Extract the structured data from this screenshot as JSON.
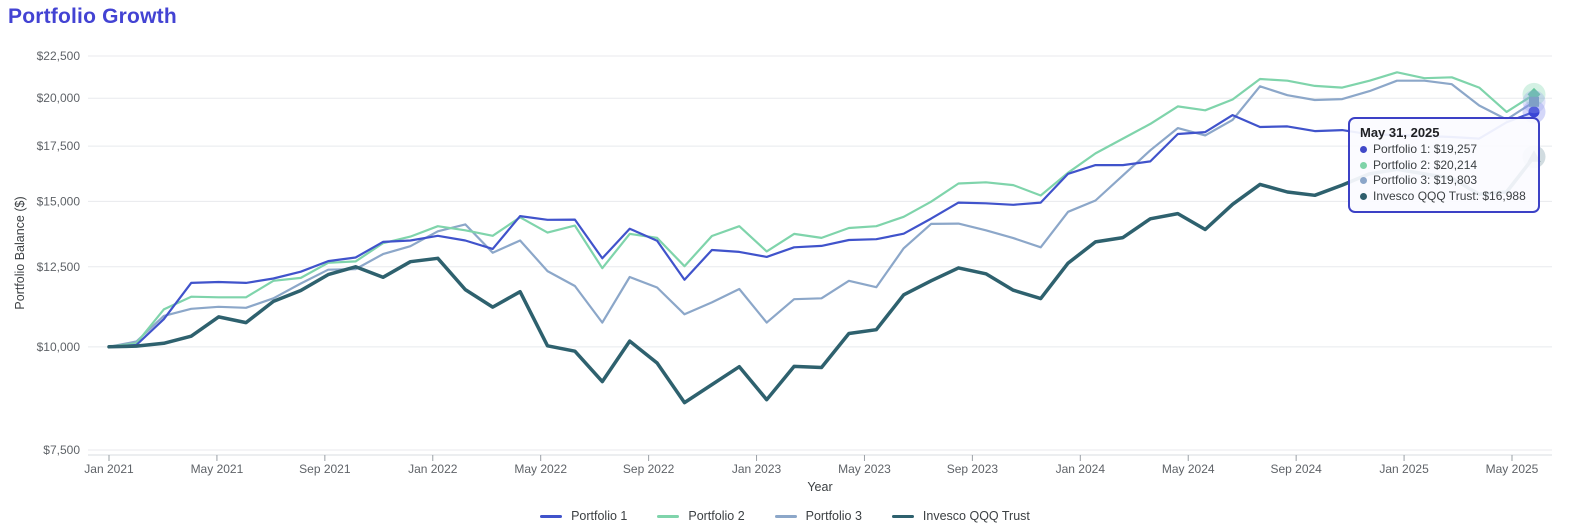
{
  "page": {
    "title": "Portfolio Growth",
    "title_color": "#4343d3"
  },
  "chart_data": {
    "type": "line",
    "title": "Portfolio Growth",
    "xlabel": "Year",
    "ylabel": "Portfolio Balance ($)",
    "y_scale": "log",
    "grid": true,
    "legend_position": "bottom",
    "ylim": [
      7500,
      22500
    ],
    "y_tick_values": [
      22500,
      20000,
      17500,
      15000,
      12500,
      10000,
      7500
    ],
    "y_tick_labels": [
      "$22,500",
      "$20,000",
      "$17,500",
      "$15,000",
      "$12,500",
      "$10,000",
      "$7,500"
    ],
    "x_tick_labels": [
      "Jan 2021",
      "May 2021",
      "Sep 2021",
      "Jan 2022",
      "May 2022",
      "Sep 2022",
      "Jan 2023",
      "May 2023",
      "Sep 2023",
      "Jan 2024",
      "May 2024",
      "Sep 2024",
      "Jan 2025",
      "May 2025"
    ],
    "months": [
      "Jan 2021",
      "Feb 2021",
      "Mar 2021",
      "Apr 2021",
      "May 2021",
      "Jun 2021",
      "Jul 2021",
      "Aug 2021",
      "Sep 2021",
      "Oct 2021",
      "Nov 2021",
      "Dec 2021",
      "Jan 2022",
      "Feb 2022",
      "Mar 2022",
      "Apr 2022",
      "May 2022",
      "Jun 2022",
      "Jul 2022",
      "Aug 2022",
      "Sep 2022",
      "Oct 2022",
      "Nov 2022",
      "Dec 2022",
      "Jan 2023",
      "Feb 2023",
      "Mar 2023",
      "Apr 2023",
      "May 2023",
      "Jun 2023",
      "Jul 2023",
      "Aug 2023",
      "Sep 2023",
      "Oct 2023",
      "Nov 2023",
      "Dec 2023",
      "Jan 2024",
      "Feb 2024",
      "Mar 2024",
      "Apr 2024",
      "May 2024",
      "Jun 2024",
      "Jul 2024",
      "Aug 2024",
      "Sep 2024",
      "Oct 2024",
      "Nov 2024",
      "Dec 2024",
      "Jan 2025",
      "Feb 2025",
      "Mar 2025",
      "Apr 2025",
      "May 2025"
    ],
    "series": [
      {
        "name": "Portfolio 1",
        "color": "#4053cb",
        "marker": "circle",
        "marker_color": "#3a46d6",
        "halo_color": "rgba(120,130,235,0.32)",
        "line_width": 2.2,
        "values": [
          10000,
          10050,
          10800,
          11950,
          11980,
          11950,
          12100,
          12330,
          12700,
          12830,
          13400,
          13450,
          13630,
          13450,
          13140,
          14400,
          14250,
          14260,
          12800,
          13900,
          13440,
          12060,
          13100,
          13030,
          12850,
          13200,
          13250,
          13470,
          13500,
          13710,
          14300,
          14950,
          14920,
          14860,
          14950,
          16200,
          16600,
          16600,
          16770,
          18100,
          18200,
          19080,
          18460,
          18490,
          18250,
          18300,
          18080,
          18050,
          18000,
          17950,
          17870,
          18700,
          19257
        ]
      },
      {
        "name": "Portfolio 2",
        "color": "#7fd4ab",
        "marker": "diamond",
        "marker_color": "#63c79c",
        "halo_color": "rgba(120,210,170,0.32)",
        "line_width": 2.2,
        "values": [
          10000,
          10100,
          11100,
          11500,
          11480,
          11480,
          12020,
          12120,
          12640,
          12690,
          13350,
          13600,
          14000,
          13840,
          13630,
          14350,
          13750,
          14020,
          12450,
          13700,
          13550,
          12520,
          13620,
          14000,
          13050,
          13700,
          13550,
          13930,
          14000,
          14370,
          14990,
          15770,
          15820,
          15700,
          15250,
          16250,
          17150,
          17870,
          18620,
          19550,
          19340,
          19930,
          21100,
          21000,
          20700,
          20600,
          21000,
          21500,
          21150,
          21200,
          20600,
          19250,
          20214
        ]
      },
      {
        "name": "Portfolio 3",
        "color": "#8ca7c9",
        "marker": "square",
        "marker_color": "#7fa0c6",
        "halo_color": "rgba(150,160,235,0.30)",
        "line_width": 2.2,
        "values": [
          10000,
          10150,
          10900,
          11120,
          11180,
          11150,
          11450,
          11930,
          12400,
          12420,
          12950,
          13240,
          13800,
          14070,
          13000,
          13450,
          12350,
          11850,
          10700,
          12150,
          11800,
          10950,
          11320,
          11750,
          10700,
          11420,
          11450,
          12020,
          11810,
          13160,
          14090,
          14100,
          13840,
          13540,
          13200,
          14570,
          15040,
          16130,
          17300,
          18400,
          18030,
          18830,
          20680,
          20170,
          19900,
          19950,
          20400,
          21000,
          21000,
          20800,
          19600,
          18850,
          19803
        ]
      },
      {
        "name": "Invesco QQQ Trust",
        "color": "#2e616e",
        "marker": "triangle",
        "marker_color": "#2e5966",
        "halo_color": "rgba(90,130,145,0.28)",
        "line_width": 3.5,
        "values": [
          10000,
          10020,
          10100,
          10300,
          10870,
          10700,
          11350,
          11700,
          12230,
          12500,
          12140,
          12680,
          12800,
          11730,
          11170,
          11660,
          10030,
          9880,
          9075,
          10160,
          9560,
          8560,
          9000,
          9460,
          8630,
          9470,
          9440,
          10380,
          10490,
          11560,
          12020,
          12460,
          12260,
          11710,
          11440,
          12630,
          13400,
          13560,
          14290,
          14500,
          13870,
          14880,
          15730,
          15400,
          15260,
          15700,
          16200,
          16400,
          16200,
          16000,
          15300,
          15400,
          16988
        ]
      }
    ],
    "colors": {
      "grid": "#e8eaed",
      "axis_line": "#dadce0",
      "tick_label": "#5f6368",
      "axis_title": "#3c4043"
    }
  },
  "tooltip": {
    "title": "May 31, 2025",
    "items": [
      {
        "label": "Portfolio 1",
        "value": "$19,257",
        "color": "#4149c8"
      },
      {
        "label": "Portfolio 2",
        "value": "$20,214",
        "color": "#7ed3a8"
      },
      {
        "label": "Portfolio 3",
        "value": "$19,803",
        "color": "#8ba6c9"
      },
      {
        "label": "Invesco QQQ Trust",
        "value": "$16,988",
        "color": "#2f5f6d"
      }
    ]
  }
}
